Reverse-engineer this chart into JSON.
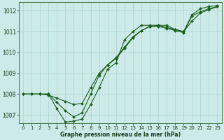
{
  "title": "Graphe pression niveau de la mer (hPa)",
  "background_color": "#cceae8",
  "grid_color": "#aad4d0",
  "line_color": "#1a5c1a",
  "xlim": [
    -0.5,
    23.5
  ],
  "ylim": [
    1006.6,
    1012.4
  ],
  "yticks": [
    1007,
    1008,
    1009,
    1010,
    1011,
    1012
  ],
  "xticks": [
    0,
    1,
    2,
    3,
    4,
    5,
    6,
    7,
    8,
    9,
    10,
    11,
    12,
    13,
    14,
    15,
    16,
    17,
    18,
    19,
    20,
    21,
    22,
    23
  ],
  "series1": [
    1008.0,
    1008.0,
    1008.0,
    1008.0,
    1007.3,
    1006.65,
    1006.7,
    1006.8,
    1007.5,
    1008.3,
    1009.2,
    1009.5,
    1010.6,
    1011.0,
    1011.3,
    1011.3,
    1011.3,
    1011.3,
    1011.1,
    1011.0,
    1011.8,
    1012.1,
    1012.2,
    1012.25
  ],
  "series2": [
    1008.0,
    1008.0,
    1008.0,
    1008.0,
    1007.6,
    1007.2,
    1006.9,
    1007.1,
    1008.0,
    1008.9,
    1009.4,
    1009.7,
    1010.2,
    1010.7,
    1011.05,
    1011.25,
    1011.25,
    1011.15,
    1011.05,
    1010.95,
    1011.75,
    1011.95,
    1012.1,
    1012.2
  ],
  "series3": [
    1008.0,
    1008.0,
    1008.0,
    1007.95,
    1007.8,
    1007.65,
    1007.5,
    1007.55,
    1008.3,
    1009.0,
    1009.4,
    1009.75,
    1010.25,
    1010.75,
    1011.05,
    1011.25,
    1011.3,
    1011.2,
    1011.1,
    1011.0,
    1011.5,
    1011.9,
    1012.05,
    1012.2
  ],
  "marker": "D",
  "markersize": 2.0,
  "linewidth": 0.8,
  "tick_fontsize": 5.0,
  "xlabel_fontsize": 5.5,
  "xlabel_fontweight": "bold"
}
